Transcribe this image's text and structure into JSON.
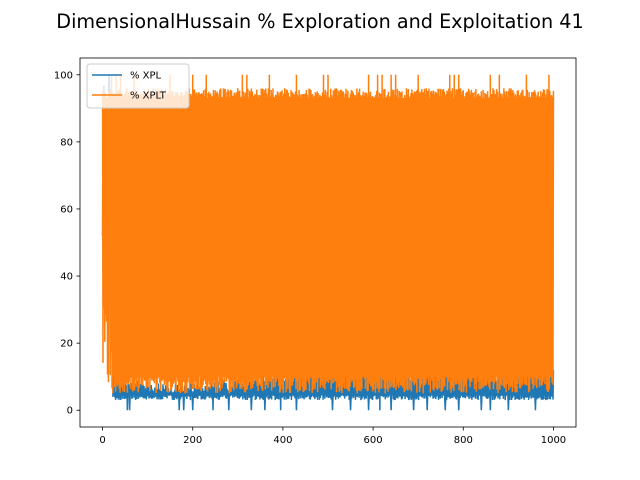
{
  "chart_data": {
    "type": "line",
    "title": "DimensionalHussain % Exploration and Exploitation 41",
    "xlabel": "",
    "ylabel": "",
    "xlim": [
      -50,
      1050
    ],
    "ylim": [
      -5,
      105
    ],
    "xticks": [
      0,
      200,
      400,
      600,
      800,
      1000
    ],
    "yticks": [
      0,
      20,
      40,
      60,
      80,
      100
    ],
    "grid": false,
    "legend_position": "upper-left",
    "series": [
      {
        "name": "% XPL",
        "color": "#1f77b4",
        "description_points": [
          {
            "x": 0,
            "y": 65
          },
          {
            "x": 5,
            "y": 97
          },
          {
            "x": 10,
            "y": 58
          },
          {
            "x": 15,
            "y": 98
          },
          {
            "x": 20,
            "y": 63
          },
          {
            "x": 30,
            "y": 10
          },
          {
            "x": 50,
            "y": 6
          },
          {
            "x": 100,
            "y": 5
          },
          {
            "x": 200,
            "y": 5
          },
          {
            "x": 300,
            "y": 6
          },
          {
            "x": 400,
            "y": 8
          },
          {
            "x": 480,
            "y": 14
          },
          {
            "x": 520,
            "y": 12
          },
          {
            "x": 560,
            "y": 13
          },
          {
            "x": 610,
            "y": 18
          },
          {
            "x": 650,
            "y": 9
          },
          {
            "x": 700,
            "y": 8
          },
          {
            "x": 760,
            "y": 10
          },
          {
            "x": 800,
            "y": 9
          },
          {
            "x": 900,
            "y": 8
          },
          {
            "x": 1000,
            "y": 8
          }
        ],
        "low_envelope": 3,
        "spikes_to_zero_x": [
          55,
          60,
          170,
          180,
          200,
          245,
          280,
          330,
          360,
          395,
          430,
          510,
          550,
          590,
          615,
          640,
          690,
          720,
          760,
          790,
          840,
          860,
          900,
          960
        ]
      },
      {
        "name": "% XPLT",
        "color": "#ff7f0e",
        "upper_band": 96,
        "lower_band": 5,
        "start_x": 0,
        "end_x": 1000,
        "spikes_to_100_x": [
          20,
          30,
          40,
          55,
          70,
          150,
          200,
          230,
          245,
          310,
          320,
          370,
          430,
          490,
          500,
          555,
          590,
          610,
          620,
          640,
          650,
          700,
          770,
          780,
          790,
          845,
          860,
          880,
          940,
          990
        ]
      }
    ]
  }
}
